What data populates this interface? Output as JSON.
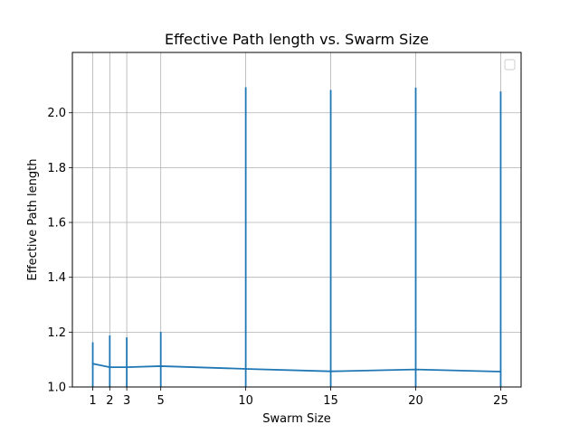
{
  "chart_data": {
    "type": "line",
    "title": "Effective Path length vs. Swarm Size",
    "xlabel": "Swarm Size",
    "ylabel": "Effective Path length",
    "x_ticks": [
      1,
      2,
      3,
      5,
      10,
      15,
      20,
      25
    ],
    "y_ticks": [
      "1.0",
      "1.2",
      "1.4",
      "1.6",
      "1.8",
      "2.0"
    ],
    "xlim": [
      -0.2,
      26.2
    ],
    "ylim": [
      1.0,
      2.22
    ],
    "grid": true,
    "legend": "top-right (empty)",
    "series": [
      {
        "x": [
          1,
          2,
          3,
          5,
          10,
          15,
          20,
          25
        ],
        "y": [
          1.085,
          1.072,
          1.072,
          1.076,
          1.066,
          1.057,
          1.064,
          1.056
        ],
        "yerr_upper": [
          1.163,
          1.188,
          1.181,
          1.201,
          2.093,
          2.083,
          2.092,
          2.078
        ],
        "yerr_lower": [
          1.0,
          1.0,
          1.0,
          1.0,
          1.0,
          1.0,
          1.0,
          1.0
        ],
        "color": "#1f77b4"
      }
    ]
  }
}
